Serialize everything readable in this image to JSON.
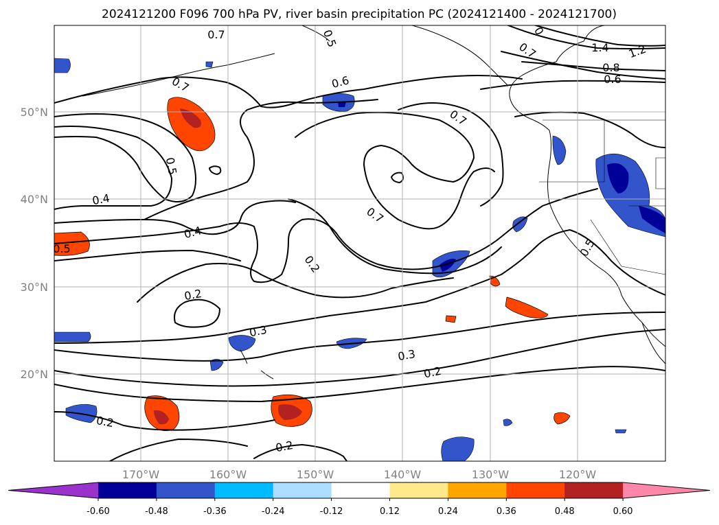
{
  "title": "2024121200 F096 700 hPa PV, river basin precipitation PC (2024121400 - 2024121700)",
  "axes": {
    "lat_labels": [
      "50°N",
      "40°N",
      "30°N",
      "20°N"
    ],
    "lon_labels": [
      "170°W",
      "160°W",
      "150°W",
      "140°W",
      "130°W",
      "120°W"
    ],
    "gridlines": true
  },
  "map": {
    "projection": "cylindrical",
    "extent": {
      "lon_min": -180,
      "lon_max": -110,
      "lat_min": 10,
      "lat_max": 60
    },
    "pv_contour_labels": [
      "0.7",
      "0.5",
      "0.7",
      "0",
      "0.7",
      "1.4",
      "1.2",
      "0.8",
      "0.6",
      "0.6",
      "0.7",
      "0.5",
      "0.4",
      "0.7",
      "0.5",
      "0.4",
      "0.5",
      "0.2",
      "0.2",
      "0.3",
      "0.3",
      "0.2",
      "0.2",
      "0.2"
    ]
  },
  "colorbar": {
    "extend": "both",
    "ticks": [
      "-0.60",
      "-0.48",
      "-0.36",
      "-0.24",
      "-0.12",
      "0.12",
      "0.24",
      "0.36",
      "0.48",
      "0.60"
    ],
    "colors": [
      "#9933cc",
      "#000099",
      "#3355cc",
      "#00bbff",
      "#aaddff",
      "#ffffff",
      "#ffe98a",
      "#ffa500",
      "#ff4500",
      "#b22222",
      "#ff88aa"
    ]
  }
}
